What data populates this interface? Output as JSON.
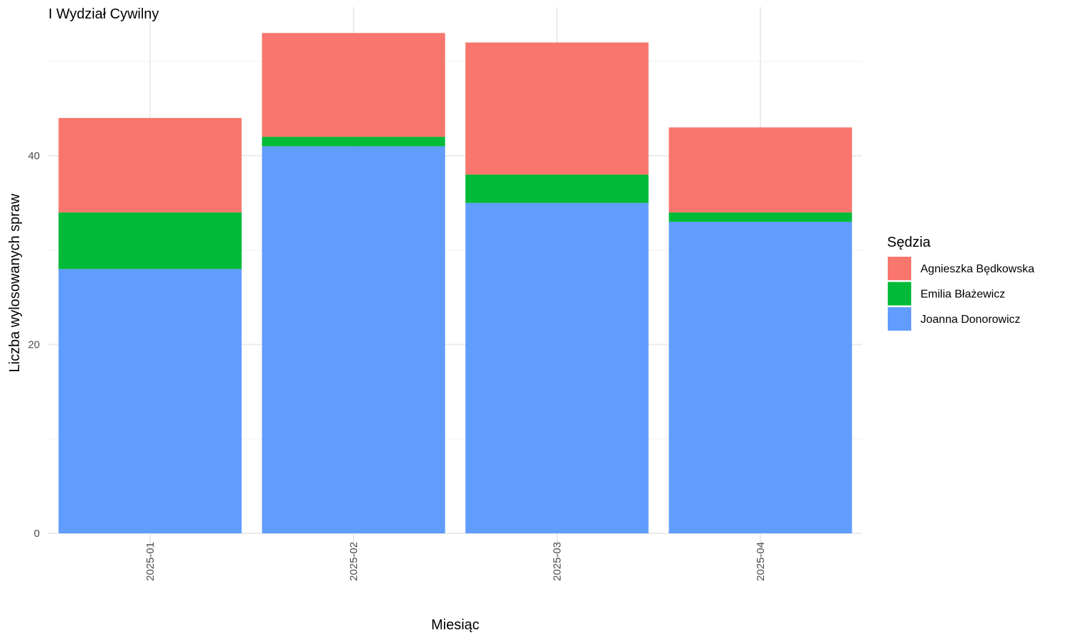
{
  "chart_data": {
    "type": "bar",
    "stacked": true,
    "title": "I Wydział Cywilny",
    "xlabel": "Miesiąc",
    "ylabel": "Liczba wylosowanych spraw",
    "categories": [
      "2025-01",
      "2025-02",
      "2025-03",
      "2025-04"
    ],
    "y_ticks": [
      0,
      20,
      40
    ],
    "ylim": [
      0,
      53
    ],
    "grid": true,
    "legend": {
      "title": "Sędzia",
      "placement": "right"
    },
    "series": [
      {
        "name": "Joanna Donorowicz",
        "color": "#619CFF",
        "values": [
          28,
          41,
          35,
          33
        ]
      },
      {
        "name": "Emilia Błażewicz",
        "color": "#00BA38",
        "values": [
          6,
          1,
          3,
          1
        ]
      },
      {
        "name": "Agnieszka Będkowska",
        "color": "#F8766D",
        "values": [
          10,
          11,
          14,
          9
        ]
      }
    ],
    "legend_order": [
      "Agnieszka Będkowska",
      "Emilia Błażewicz",
      "Joanna Donorowicz"
    ]
  }
}
